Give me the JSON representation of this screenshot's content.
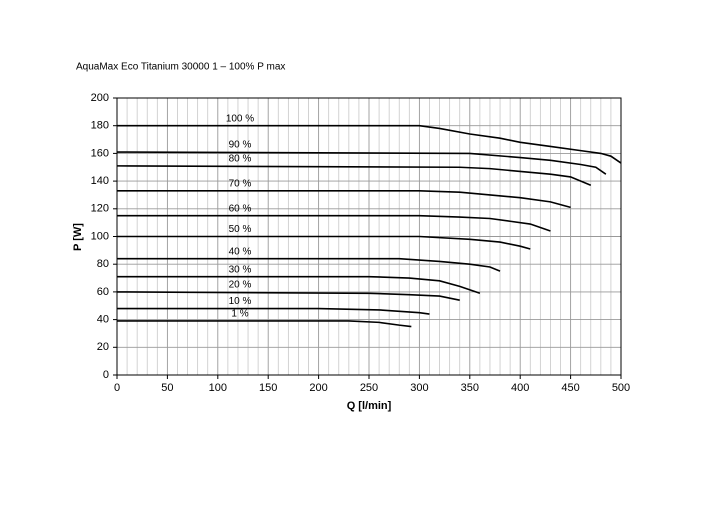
{
  "chart_data": {
    "type": "line",
    "title": "AquaMax Eco Titanium 30000 1 – 100% P max",
    "x_label": "Q [l/min]",
    "y_label": "P [W]",
    "xlim": [
      0,
      500
    ],
    "ylim": [
      0,
      200
    ],
    "xticks": [
      0,
      50,
      100,
      150,
      200,
      250,
      300,
      350,
      400,
      450,
      500
    ],
    "yticks": [
      0,
      20,
      40,
      60,
      80,
      100,
      120,
      140,
      160,
      180,
      200
    ],
    "xminorticks": [
      10,
      20,
      30,
      40,
      60,
      70,
      80,
      90,
      110,
      120,
      130,
      140,
      160,
      170,
      180,
      190,
      210,
      220,
      230,
      240,
      260,
      270,
      280,
      290,
      310,
      320,
      330,
      340,
      360,
      370,
      380,
      390,
      410,
      420,
      430,
      440,
      460,
      470,
      480,
      490
    ],
    "grid": true,
    "series": [
      {
        "name": "100 %",
        "color": "#000000",
        "x": [
          0,
          290,
          300,
          320,
          350,
          380,
          400,
          430,
          460,
          480,
          490,
          500
        ],
        "values": [
          180,
          180,
          180,
          178,
          174,
          171,
          168,
          165,
          162,
          160,
          158,
          153
        ]
      },
      {
        "name": "90 %",
        "color": "#000000",
        "x": [
          0,
          350,
          400,
          430,
          460,
          475,
          485
        ],
        "values": [
          161,
          160,
          157,
          155,
          152,
          150,
          145
        ]
      },
      {
        "name": "80 %",
        "color": "#000000",
        "x": [
          0,
          340,
          370,
          400,
          430,
          450,
          470
        ],
        "values": [
          151,
          150,
          149,
          147,
          145,
          143,
          137
        ]
      },
      {
        "name": "70 %",
        "color": "#000000",
        "x": [
          0,
          300,
          340,
          370,
          400,
          430,
          450
        ],
        "values": [
          133,
          133,
          132,
          130,
          128,
          125,
          121
        ]
      },
      {
        "name": "60 %",
        "color": "#000000",
        "x": [
          0,
          300,
          340,
          370,
          390,
          410,
          430
        ],
        "values": [
          115,
          115,
          114,
          113,
          111,
          109,
          104
        ]
      },
      {
        "name": "50 %",
        "color": "#000000",
        "x": [
          0,
          300,
          350,
          380,
          400,
          410
        ],
        "values": [
          100,
          100,
          98,
          96,
          93,
          91
        ]
      },
      {
        "name": "40 %",
        "color": "#000000",
        "x": [
          0,
          280,
          320,
          350,
          370,
          380
        ],
        "values": [
          84,
          84,
          82,
          80,
          78,
          75
        ]
      },
      {
        "name": "30 %",
        "color": "#000000",
        "x": [
          0,
          250,
          290,
          320,
          340,
          360
        ],
        "values": [
          71,
          71,
          70,
          68,
          64,
          59
        ]
      },
      {
        "name": "20 %",
        "color": "#000000",
        "x": [
          0,
          250,
          290,
          320,
          340
        ],
        "values": [
          60,
          59,
          58,
          57,
          54
        ]
      },
      {
        "name": "10 %",
        "color": "#000000",
        "x": [
          0,
          200,
          260,
          300,
          310
        ],
        "values": [
          48,
          48,
          47,
          45,
          44
        ]
      },
      {
        "name": "1 %",
        "color": "#000000",
        "x": [
          0,
          230,
          260,
          280,
          292
        ],
        "values": [
          39,
          39,
          38,
          36,
          35
        ]
      }
    ]
  }
}
